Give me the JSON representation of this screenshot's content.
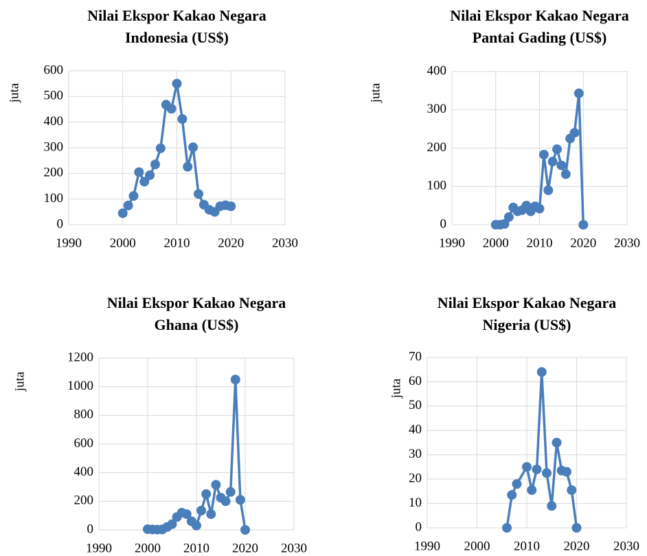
{
  "chart_data": [
    {
      "type": "line",
      "title": [
        "Nilai Ekspor Kakao Negara",
        "Indonesia (US$)"
      ],
      "ylabel": "juta",
      "color": "#4a7ebb",
      "grid": true,
      "x": [
        2000,
        2001,
        2002,
        2003,
        2004,
        2005,
        2006,
        2007,
        2008,
        2009,
        2010,
        2011,
        2012,
        2013,
        2014,
        2015,
        2016,
        2017,
        2018,
        2019,
        2020
      ],
      "values": [
        45,
        75,
        112,
        205,
        168,
        193,
        235,
        298,
        468,
        452,
        550,
        412,
        226,
        302,
        120,
        78,
        58,
        50,
        72,
        76,
        72
      ],
      "xlim": [
        1990,
        2030
      ],
      "xticks": [
        1990,
        2000,
        2010,
        2020,
        2030
      ],
      "ylim": [
        0,
        600
      ],
      "yticks": [
        0,
        100,
        200,
        300,
        400,
        500,
        600
      ]
    },
    {
      "type": "line",
      "title": [
        "Nilai Ekspor Kakao Negara",
        "Pantai Gading (US$)"
      ],
      "ylabel": "juta",
      "color": "#4a7ebb",
      "grid": true,
      "x": [
        2000,
        2001,
        2002,
        2003,
        2004,
        2005,
        2006,
        2007,
        2008,
        2009,
        2010,
        2011,
        2012,
        2013,
        2014,
        2015,
        2016,
        2017,
        2018,
        2019,
        2020
      ],
      "values": [
        0,
        0,
        2,
        20,
        45,
        35,
        38,
        50,
        35,
        48,
        42,
        183,
        90,
        165,
        197,
        155,
        132,
        225,
        240,
        343,
        0
      ],
      "xlim": [
        1990,
        2030
      ],
      "xticks": [
        1990,
        2000,
        2010,
        2020,
        2030
      ],
      "ylim": [
        0,
        400
      ],
      "yticks": [
        0,
        100,
        200,
        300,
        400
      ]
    },
    {
      "type": "line",
      "title": [
        "Nilai Ekspor Kakao Negara",
        "Ghana (US$)"
      ],
      "ylabel": "juta",
      "color": "#4a7ebb",
      "grid": true,
      "x": [
        2000,
        2001,
        2002,
        2003,
        2004,
        2005,
        2006,
        2007,
        2008,
        2009,
        2010,
        2011,
        2012,
        2013,
        2014,
        2015,
        2016,
        2017,
        2018,
        2019,
        2020
      ],
      "values": [
        5,
        3,
        2,
        3,
        20,
        40,
        90,
        120,
        110,
        60,
        30,
        135,
        250,
        110,
        315,
        225,
        200,
        265,
        1050,
        210,
        0
      ],
      "xlim": [
        1990,
        2030
      ],
      "xticks": [
        1990,
        2000,
        2010,
        2020,
        2030
      ],
      "ylim": [
        0,
        1200
      ],
      "yticks": [
        0,
        200,
        400,
        600,
        800,
        1000,
        1200
      ]
    },
    {
      "type": "line",
      "title": [
        "Nilai Ekspor Kakao Negara",
        "Nigeria (US$)"
      ],
      "ylabel": "juta",
      "color": "#4a7ebb",
      "grid": true,
      "x": [
        2006,
        2007,
        2008,
        2010,
        2011,
        2012,
        2013,
        2014,
        2015,
        2016,
        2017,
        2018,
        2019,
        2020
      ],
      "values": [
        0,
        13.5,
        18,
        25,
        15.5,
        24,
        64,
        22.5,
        9,
        35,
        23.5,
        23,
        15.5,
        0
      ],
      "xlim": [
        1990,
        2030
      ],
      "xticks": [
        1990,
        2000,
        2010,
        2020,
        2030
      ],
      "ylim": [
        0,
        70
      ],
      "yticks": [
        0,
        10,
        20,
        30,
        40,
        50,
        60,
        70
      ]
    }
  ]
}
